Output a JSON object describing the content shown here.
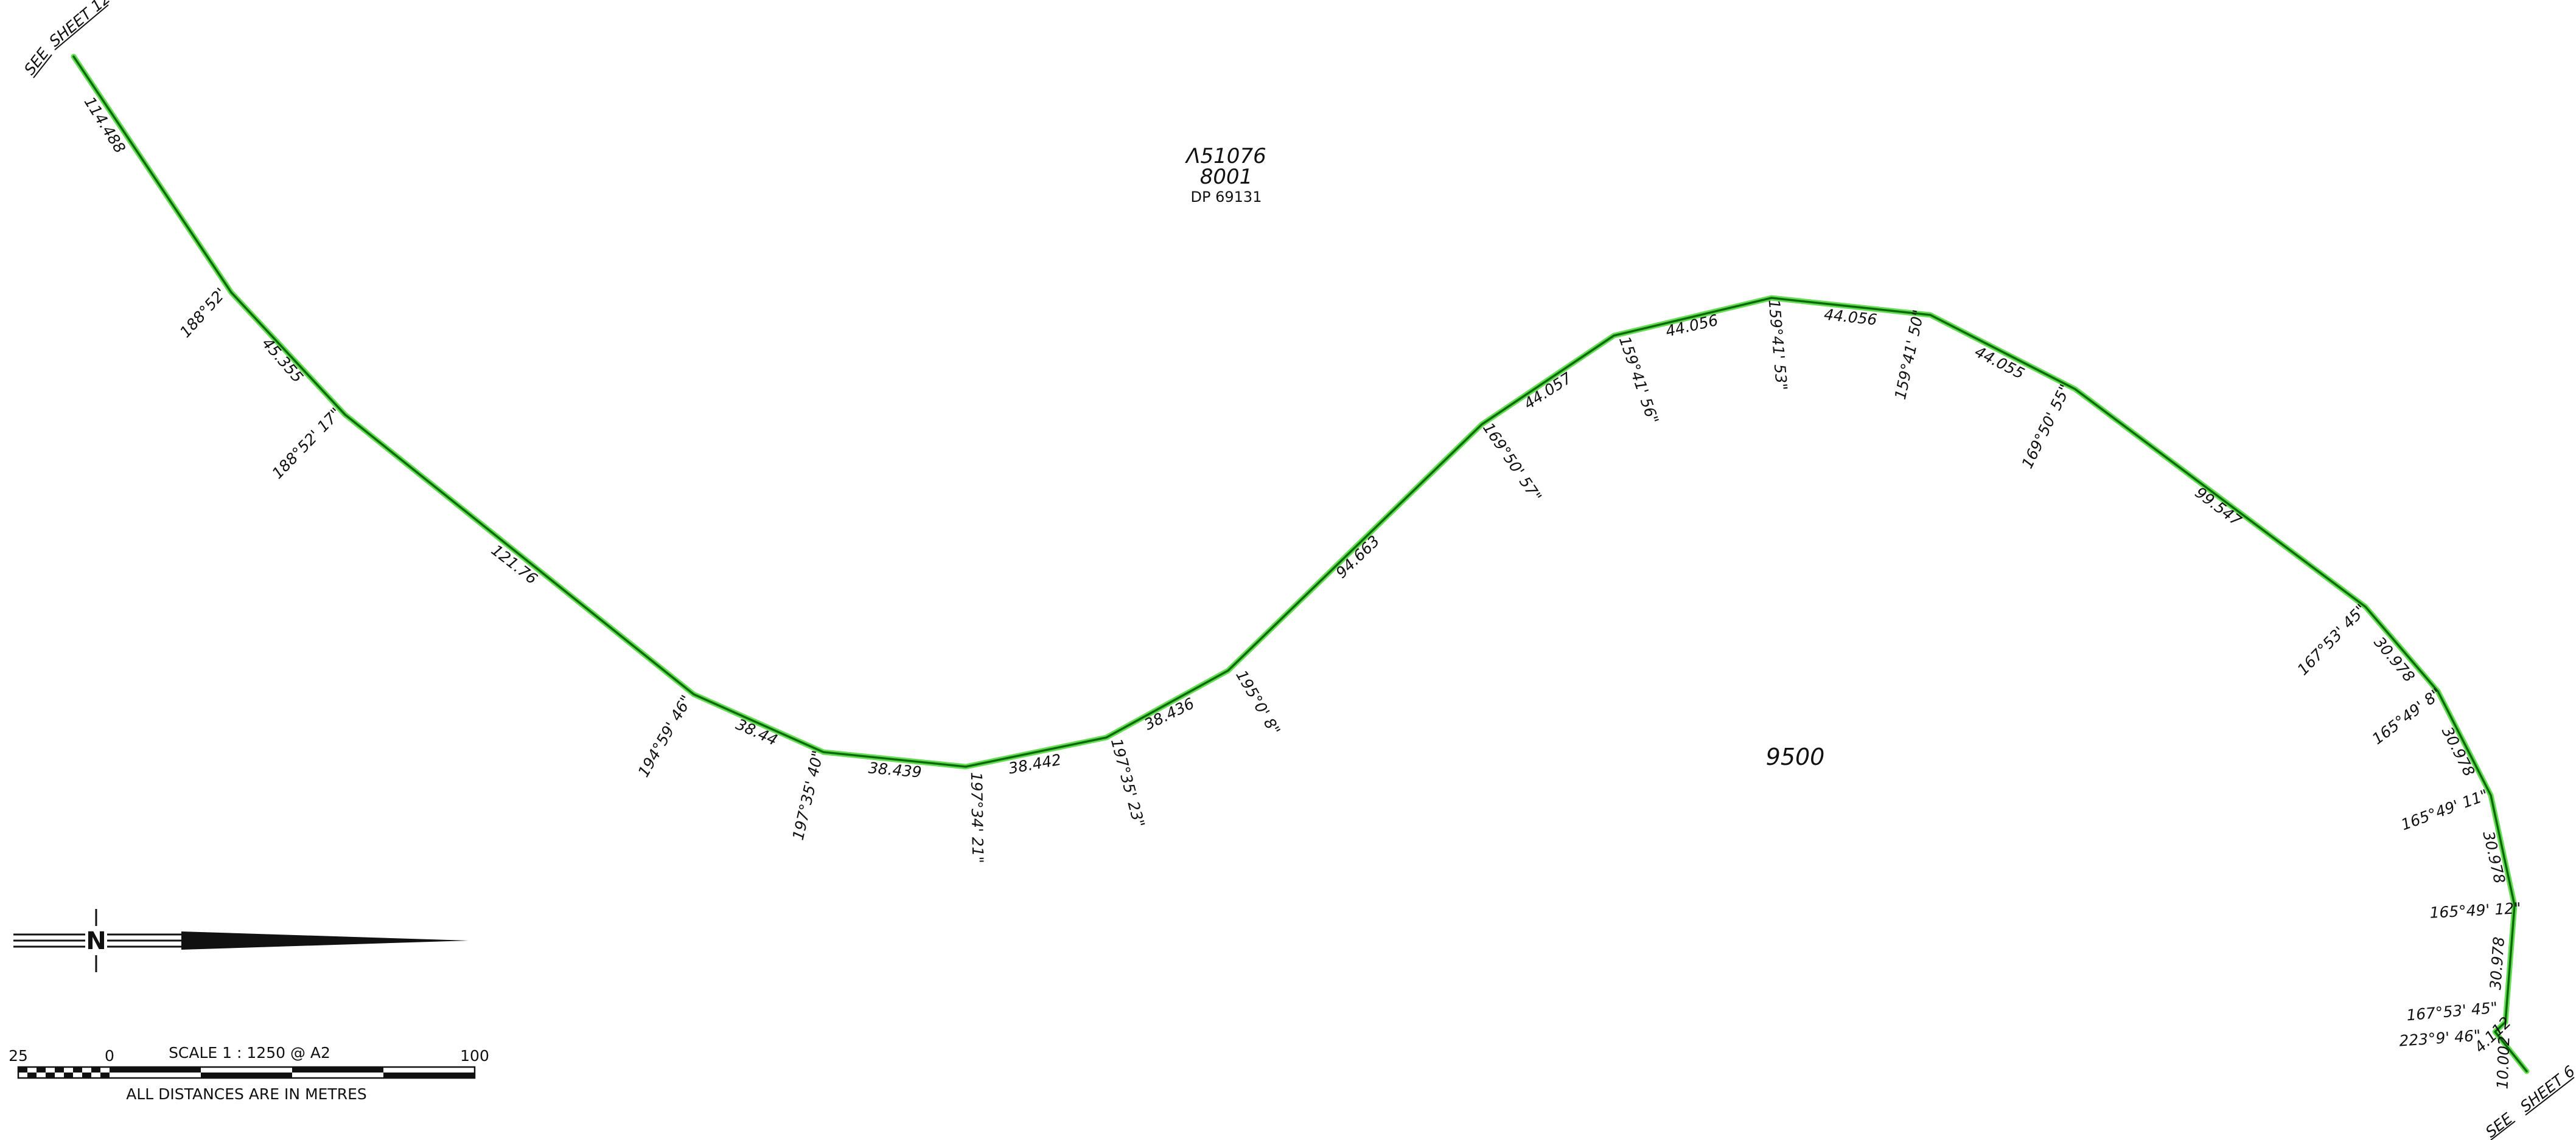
{
  "colors": {
    "boundary": "#0a6a0a",
    "boundary_glow": "#66dd55",
    "ink": "#111111"
  },
  "lot": {
    "prefix_symbol": "Λ",
    "number": "51076",
    "sublot": "8001",
    "plan": "DP 69131",
    "adjoining": "9500"
  },
  "references": {
    "top_see": "SEE",
    "top_sheet": "SHEET 12",
    "bottom_see": "SEE",
    "bottom_sheet": "SHEET 6"
  },
  "north": {
    "letter": "N"
  },
  "scale": {
    "title": "SCALE  1 : 1250 @ A2",
    "left": "25",
    "zero": "0",
    "right": "100",
    "units_note": "ALL DISTANCES ARE IN METRES"
  },
  "boundary": {
    "distances": [
      "114.488",
      "45.355",
      "121.76",
      "38.44",
      "38.439",
      "38.442",
      "38.436",
      "94.663",
      "44.057",
      "44.056",
      "44.056",
      "44.055",
      "99.547",
      "30.978",
      "30.978",
      "30.978",
      "30.978",
      "4.112",
      "10.002"
    ],
    "angles": [
      "188°52'",
      "188°52' 17\"",
      "194°59' 46\"",
      "197°35' 40\"",
      "197°34' 21\"",
      "197°35' 23\"",
      "195°0' 8\"",
      "169°50' 57\"",
      "159°41' 56\"",
      "159°41' 53\"",
      "159°41' 50\"",
      "169°50' 55\"",
      "167°53' 45\"",
      "165°49' 8\"",
      "165°49' 11\"",
      "165°49' 12\"",
      "167°53' 45\"",
      "223°9' 46\""
    ]
  }
}
